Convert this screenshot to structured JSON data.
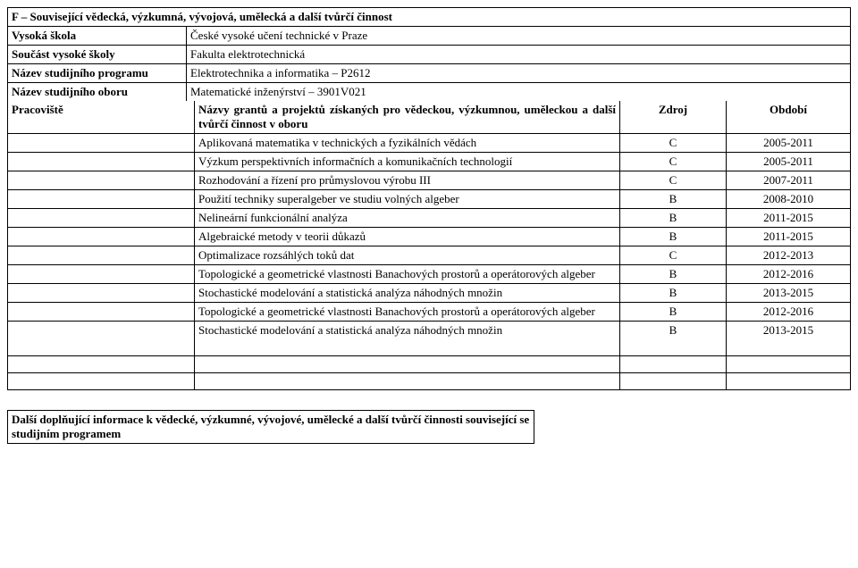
{
  "title": "F – Související vědecká, výzkumná, vývojová, umělecká a další tvůrčí činnost",
  "header": [
    {
      "label": "Vysoká škola",
      "value": "České vysoké učení technické v Praze"
    },
    {
      "label": "Součást vysoké školy",
      "value": "Fakulta elektrotechnická"
    },
    {
      "label": "Název studijního programu",
      "value": "Elektrotechnika a informatika – P2612"
    },
    {
      "label": "Název studijního oboru",
      "value": "Matematické inženýrství – 3901V021"
    }
  ],
  "grants_header": {
    "pracoviste_label": "Pracoviště",
    "names_label": "Názvy grantů a projektů získaných pro vědeckou, výzkumnou, uměleckou a další tvůrčí činnost v oboru",
    "source_label": "Zdroj",
    "period_label": "Období"
  },
  "grants": [
    {
      "name": "Aplikovaná matematika v technických a fyzikálních vědách",
      "source": "C",
      "period": "2005-2011"
    },
    {
      "name": "Výzkum perspektivních informačních a komunikačních technologií",
      "source": "C",
      "period": "2005-2011"
    },
    {
      "name": "Rozhodování a řízení pro průmyslovou výrobu III",
      "source": "C",
      "period": "2007-2011"
    },
    {
      "name": "Použití techniky superalgeber ve studiu volných algeber",
      "source": "B",
      "period": "2008-2010"
    },
    {
      "name": "Nelineární funkcionální analýza",
      "source": "B",
      "period": "2011-2015"
    },
    {
      "name": "Algebraické metody v teorii důkazů",
      "source": "B",
      "period": "2011-2015"
    },
    {
      "name": "Optimalizace rozsáhlých toků dat",
      "source": "C",
      "period": "2012-2013"
    },
    {
      "name": "Topologické a geometrické vlastnosti Banachových prostorů a operátorových algeber",
      "source": "B",
      "period": "2012-2016"
    },
    {
      "name": "Stochastické modelování a statistická analýza náhodných množin",
      "source": "B",
      "period": "2013-2015"
    },
    {
      "name": "Topologické a geometrické vlastnosti Banachových prostorů a operátorových algeber",
      "source": "B",
      "period": "2012-2016"
    },
    {
      "name": "Stochastické modelování a statistická analýza náhodných množin",
      "source": "B",
      "period": "2013-2015"
    }
  ],
  "blank_rows": 3,
  "footer_text": "Další doplňující informace k vědecké, výzkumné, vývojové, umělecké a další tvůrčí činnosti související se studijním programem"
}
